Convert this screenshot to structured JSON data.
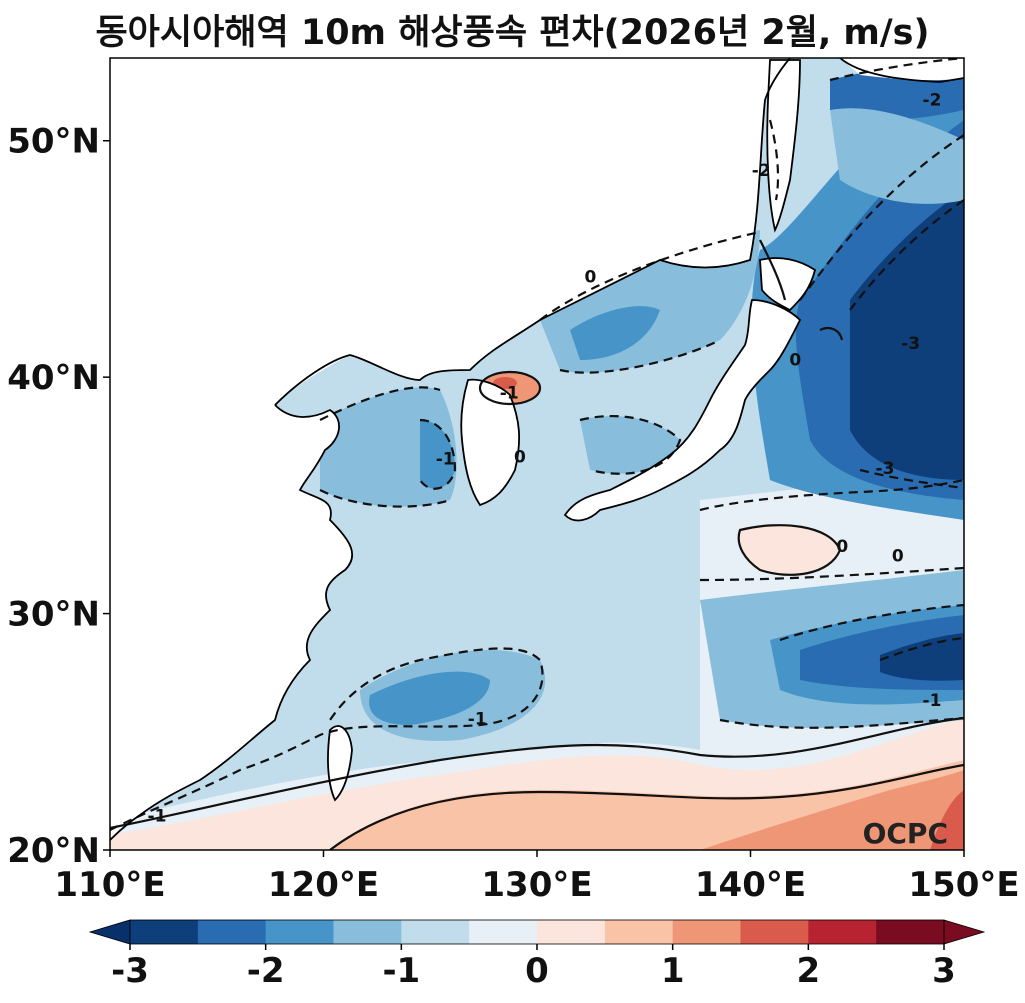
{
  "title": "동아시아해역 10m 해상풍속 편차(2026년 2월, m/s)",
  "credit": "OCPC",
  "map": {
    "lon_range": [
      110,
      150
    ],
    "lat_range": [
      20,
      53.5
    ],
    "x_ticks": [
      {
        "value": 110,
        "label": "110°E"
      },
      {
        "value": 120,
        "label": "120°E"
      },
      {
        "value": 130,
        "label": "130°E"
      },
      {
        "value": 140,
        "label": "140°E"
      },
      {
        "value": 150,
        "label": "150°E"
      }
    ],
    "y_ticks": [
      {
        "value": 20,
        "label": "20°N"
      },
      {
        "value": 30,
        "label": "30°N"
      },
      {
        "value": 40,
        "label": "40°N"
      },
      {
        "value": 50,
        "label": "50°N"
      }
    ],
    "contour_labels": [
      {
        "text": "-2",
        "lon": 148.5,
        "lat": 51.5
      },
      {
        "text": "-2",
        "lon": 140.5,
        "lat": 48.5
      },
      {
        "text": "-3",
        "lon": 147.5,
        "lat": 41.2
      },
      {
        "text": "-3",
        "lon": 146.3,
        "lat": 35.9
      },
      {
        "text": "0",
        "lon": 142.1,
        "lat": 40.5
      },
      {
        "text": "0",
        "lon": 132.5,
        "lat": 44.0
      },
      {
        "text": "0",
        "lon": 129.2,
        "lat": 36.4
      },
      {
        "text": "-1",
        "lon": 128.7,
        "lat": 39.1
      },
      {
        "text": "-1",
        "lon": 125.7,
        "lat": 36.3
      },
      {
        "text": "0",
        "lon": 144.3,
        "lat": 32.6
      },
      {
        "text": "0",
        "lon": 146.9,
        "lat": 32.2
      },
      {
        "text": "-1",
        "lon": 127.2,
        "lat": 25.3
      },
      {
        "text": "-1",
        "lon": 112.2,
        "lat": 21.2
      },
      {
        "text": "-1",
        "lon": 148.5,
        "lat": 26.1
      }
    ]
  },
  "colorbar": {
    "levels": [
      -3,
      -2.5,
      -2,
      -1.5,
      -1,
      -0.5,
      0,
      0.5,
      1,
      1.5,
      2,
      2.5,
      3
    ],
    "colors": [
      "#08306b",
      "#0e3f7a",
      "#2a6cb1",
      "#4795c8",
      "#89bddc",
      "#c1dceb",
      "#e7f0f6",
      "#fbe5dc",
      "#f9c3a8",
      "#ee9676",
      "#d85b4c",
      "#b72330",
      "#7a0c22"
    ],
    "tick_labels": [
      "-3",
      "-2",
      "-1",
      "0",
      "1",
      "2",
      "3"
    ]
  }
}
